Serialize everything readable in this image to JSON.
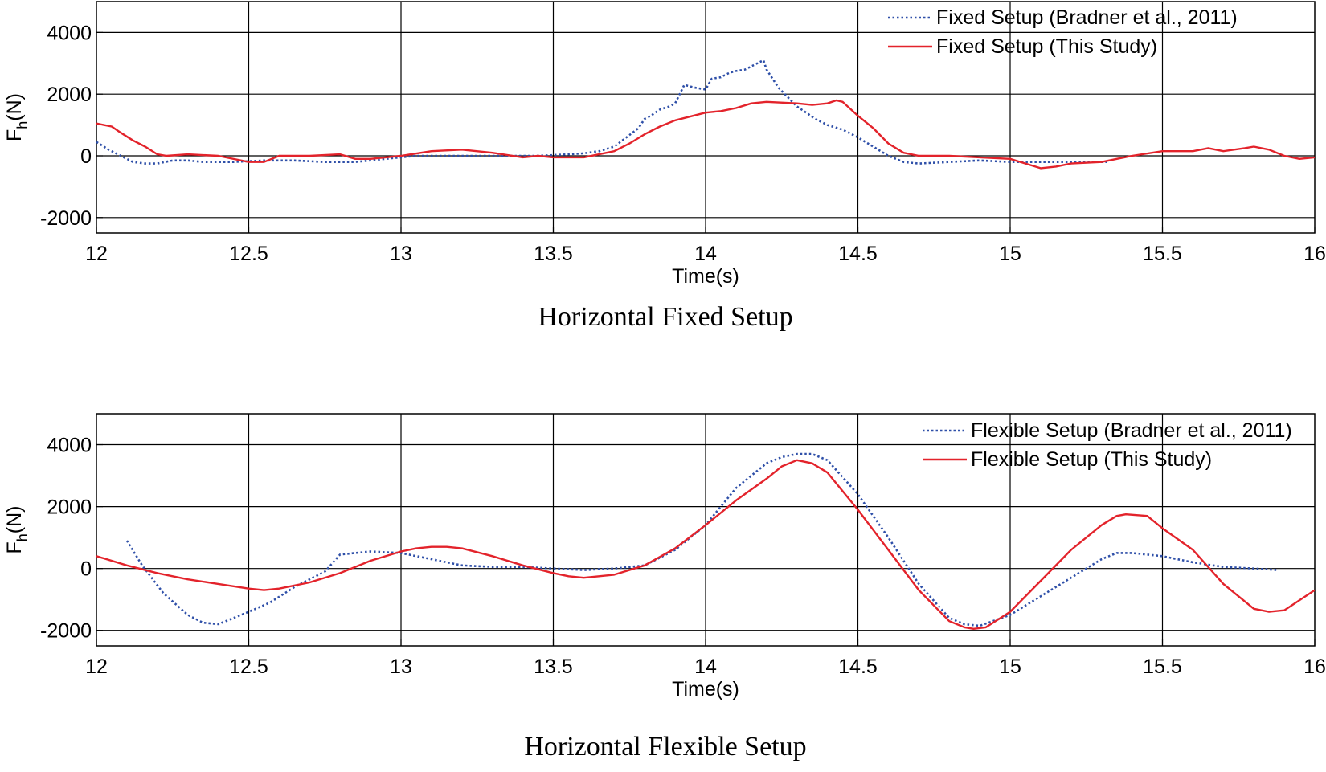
{
  "chart_data": [
    {
      "type": "line",
      "caption": "Horizontal Fixed Setup",
      "xlabel": "Time(s)",
      "ylabel_main": "F",
      "ylabel_sub": "h",
      "ylabel_tail": "(N)",
      "xlim": [
        12,
        16
      ],
      "ylim": [
        -2500,
        5000
      ],
      "xticks": [
        12,
        12.5,
        13,
        13.5,
        14,
        14.5,
        15,
        15.5,
        16
      ],
      "yticks": [
        -2000,
        0,
        2000,
        4000
      ],
      "grid": true,
      "legend_position": "top-right",
      "series": [
        {
          "name": "Fixed Setup  (Bradner et al., 2011)",
          "style": "dotted",
          "color": "#2e4fa8",
          "x": [
            12.0,
            12.04,
            12.08,
            12.12,
            12.16,
            12.2,
            12.25,
            12.3,
            12.35,
            12.45,
            12.55,
            12.65,
            12.75,
            12.85,
            12.95,
            13.05,
            13.2,
            13.35,
            13.45,
            13.55,
            13.6,
            13.65,
            13.7,
            13.74,
            13.78,
            13.8,
            13.82,
            13.85,
            13.88,
            13.9,
            13.93,
            13.95,
            13.97,
            14.0,
            14.02,
            14.05,
            14.08,
            14.1,
            14.13,
            14.15,
            14.17,
            14.19,
            14.2,
            14.22,
            14.24,
            14.26,
            14.28,
            14.3,
            14.33,
            14.36,
            14.4,
            14.45,
            14.5,
            14.55,
            14.6,
            14.65,
            14.7,
            14.8,
            14.9,
            15.0,
            15.1,
            15.2,
            15.3,
            15.32
          ],
          "y": [
            450,
            200,
            0,
            -200,
            -250,
            -250,
            -150,
            -150,
            -200,
            -200,
            -150,
            -150,
            -200,
            -200,
            -100,
            0,
            0,
            0,
            0,
            50,
            80,
            150,
            300,
            600,
            900,
            1200,
            1300,
            1500,
            1600,
            1700,
            2300,
            2250,
            2200,
            2150,
            2500,
            2550,
            2700,
            2750,
            2800,
            2900,
            3000,
            3100,
            2800,
            2500,
            2200,
            2000,
            1800,
            1600,
            1400,
            1200,
            1000,
            850,
            600,
            300,
            0,
            -200,
            -250,
            -200,
            -150,
            -200,
            -200,
            -200,
            -200,
            -200
          ]
        },
        {
          "name": "Fixed Setup (This Study)",
          "style": "solid",
          "color": "#e3232b",
          "x": [
            12.0,
            12.05,
            12.08,
            12.12,
            12.16,
            12.2,
            12.23,
            12.3,
            12.4,
            12.5,
            12.55,
            12.6,
            12.7,
            12.8,
            12.85,
            12.9,
            13.0,
            13.1,
            13.2,
            13.3,
            13.4,
            13.45,
            13.5,
            13.6,
            13.65,
            13.7,
            13.75,
            13.8,
            13.85,
            13.9,
            14.0,
            14.05,
            14.1,
            14.15,
            14.2,
            14.3,
            14.35,
            14.4,
            14.43,
            14.45,
            14.5,
            14.55,
            14.6,
            14.65,
            14.7,
            14.8,
            14.9,
            15.0,
            15.05,
            15.1,
            15.15,
            15.2,
            15.3,
            15.4,
            15.5,
            15.55,
            15.6,
            15.65,
            15.7,
            15.77,
            15.8,
            15.85,
            15.9,
            15.95,
            16.0
          ],
          "y": [
            1050,
            950,
            750,
            500,
            300,
            50,
            0,
            50,
            0,
            -200,
            -200,
            0,
            0,
            50,
            -100,
            -100,
            0,
            150,
            200,
            100,
            -50,
            0,
            -50,
            -50,
            50,
            150,
            400,
            700,
            950,
            1150,
            1400,
            1450,
            1550,
            1700,
            1750,
            1700,
            1650,
            1700,
            1800,
            1750,
            1300,
            900,
            400,
            100,
            0,
            0,
            -50,
            -100,
            -250,
            -400,
            -350,
            -250,
            -200,
            0,
            150,
            150,
            150,
            250,
            150,
            250,
            300,
            200,
            0,
            -100,
            -50
          ]
        }
      ]
    },
    {
      "type": "line",
      "caption": "Horizontal Flexible Setup",
      "xlabel": "Time(s)",
      "ylabel_main": "F",
      "ylabel_sub": "h",
      "ylabel_tail": "(N)",
      "xlim": [
        12,
        16
      ],
      "ylim": [
        -2500,
        5000
      ],
      "xticks": [
        12,
        12.5,
        13,
        13.5,
        14,
        14.5,
        15,
        15.5,
        16
      ],
      "yticks": [
        -2000,
        0,
        2000,
        4000
      ],
      "grid": true,
      "legend_position": "top-right",
      "series": [
        {
          "name": "Flexible Setup (Bradner et al., 2011)",
          "style": "dotted",
          "color": "#2e4fa8",
          "x": [
            12.1,
            12.15,
            12.22,
            12.3,
            12.35,
            12.4,
            12.45,
            12.5,
            12.57,
            12.65,
            12.75,
            12.8,
            12.9,
            13.0,
            13.1,
            13.2,
            13.3,
            13.4,
            13.5,
            13.6,
            13.7,
            13.8,
            13.9,
            14.0,
            14.1,
            14.2,
            14.25,
            14.3,
            14.35,
            14.4,
            14.5,
            14.6,
            14.7,
            14.8,
            14.85,
            14.9,
            15.0,
            15.1,
            15.2,
            15.3,
            15.35,
            15.4,
            15.5,
            15.6,
            15.7,
            15.8,
            15.88
          ],
          "y": [
            900,
            100,
            -800,
            -1500,
            -1750,
            -1800,
            -1600,
            -1400,
            -1100,
            -600,
            -100,
            450,
            550,
            500,
            300,
            100,
            50,
            50,
            0,
            -50,
            0,
            100,
            600,
            1400,
            2600,
            3400,
            3600,
            3700,
            3700,
            3500,
            2400,
            1000,
            -500,
            -1600,
            -1800,
            -1850,
            -1500,
            -900,
            -300,
            300,
            500,
            500,
            400,
            200,
            50,
            0,
            -50
          ]
        },
        {
          "name": "Flexible Setup (This Study)",
          "style": "solid",
          "color": "#e3232b",
          "x": [
            12.0,
            12.1,
            12.2,
            12.3,
            12.4,
            12.5,
            12.55,
            12.6,
            12.7,
            12.8,
            12.9,
            13.0,
            13.05,
            13.1,
            13.15,
            13.2,
            13.3,
            13.4,
            13.5,
            13.55,
            13.6,
            13.7,
            13.8,
            13.9,
            14.0,
            14.1,
            14.2,
            14.25,
            14.3,
            14.35,
            14.4,
            14.5,
            14.6,
            14.7,
            14.8,
            14.85,
            14.88,
            14.92,
            15.0,
            15.1,
            15.2,
            15.3,
            15.35,
            15.38,
            15.45,
            15.5,
            15.6,
            15.7,
            15.8,
            15.85,
            15.9,
            16.0
          ],
          "y": [
            400,
            100,
            -150,
            -350,
            -500,
            -650,
            -700,
            -650,
            -450,
            -150,
            250,
            550,
            650,
            700,
            700,
            650,
            400,
            100,
            -150,
            -250,
            -300,
            -200,
            100,
            650,
            1400,
            2200,
            2900,
            3300,
            3500,
            3400,
            3100,
            1900,
            600,
            -700,
            -1700,
            -1900,
            -1950,
            -1900,
            -1400,
            -400,
            600,
            1400,
            1700,
            1750,
            1700,
            1300,
            600,
            -500,
            -1300,
            -1400,
            -1350,
            -700
          ]
        }
      ]
    }
  ]
}
